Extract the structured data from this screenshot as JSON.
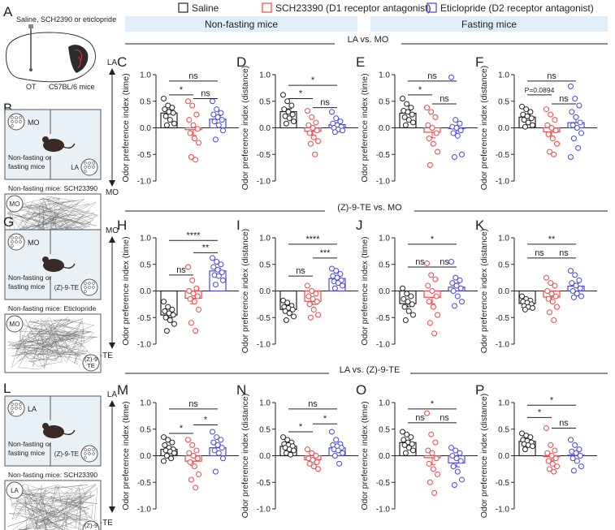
{
  "legend": [
    {
      "label": "Saline",
      "color": "#222222"
    },
    {
      "label": "SCH23390 (D1 receptor antagonist)",
      "color": "#e8474b"
    },
    {
      "label": "Eticlopride (D2 receptor antagonist)",
      "color": "#4a47d6"
    }
  ],
  "headers": {
    "nonfasting": "Non-fasting mice",
    "fasting": "Fasting mice"
  },
  "colors": {
    "saline": "#222222",
    "sch": "#e8474b",
    "etic": "#4a47d6",
    "header_bg": "#dfeef8",
    "box_bg": "#e9f1f7"
  },
  "rows": [
    {
      "title": "LA vs. MO",
      "top": "LA",
      "bottom": "MO"
    },
    {
      "title": "(Z)-9-TE vs. MO",
      "top": "MO",
      "bottom": "(Z)-9-TE"
    },
    {
      "title": "LA vs. (Z)-9-TE",
      "top": "LA",
      "bottom": "(Z)-9-TE"
    }
  ],
  "panel_A": {
    "letter": "A",
    "caption": "Saline, SCH2390 or eticlopride",
    "mouse": "C57BL/6 mice",
    "site": "OT"
  },
  "schematics": [
    {
      "letter": "B",
      "odor1": "MO",
      "odor2": "LA",
      "label": "Non-fasting or fasting mice",
      "track_caption": "Non-fasting mice: SCH23390",
      "track1": "MO",
      "track2": "LA"
    },
    {
      "letter": "G",
      "odor1": "MO",
      "odor2": "(Z)-9-TE",
      "label": "Non-fasting or fasting mice",
      "track_caption": "Non-fasting mice: Eticlopride",
      "track1": "MO",
      "track2": "(Z)-9 TE"
    },
    {
      "letter": "L",
      "odor1": "LA",
      "odor2": "(Z)-9-TE",
      "label": "Non-fasting or fasting mice",
      "track_caption": "Non-fasting mice: SCH23390",
      "track1": "LA",
      "track2": "(Z)-9 TE"
    }
  ],
  "chart_data": [
    {
      "panel": "C",
      "type": "scatter",
      "ylabel": "Odor preference index (time)",
      "ylim": [
        -1,
        1
      ],
      "yticks": [
        -1.0,
        -0.5,
        0.0,
        0.5,
        1.0
      ],
      "series": [
        {
          "values": [
            0.55,
            0.42,
            0.38,
            0.35,
            0.3,
            0.28,
            0.22,
            0.15,
            0.08,
            0.05
          ]
        },
        {
          "values": [
            0.5,
            0.42,
            0.25,
            0.15,
            0.05,
            -0.02,
            -0.1,
            -0.2,
            -0.28,
            -0.55,
            -0.6
          ]
        },
        {
          "values": [
            0.5,
            0.35,
            0.28,
            0.25,
            0.2,
            0.15,
            0.12,
            0.05,
            -0.05,
            -0.22
          ]
        }
      ],
      "brackets": [
        {
          "from": 0,
          "to": 2,
          "label": "ns",
          "y": 0.88
        },
        {
          "from": 0,
          "to": 1,
          "label": "*",
          "y": 0.62
        },
        {
          "from": 1,
          "to": 2,
          "label": "ns",
          "y": 0.55
        }
      ]
    },
    {
      "panel": "D",
      "type": "scatter",
      "ylabel": "Odor preference index (distance)",
      "ylim": [
        -1,
        1
      ],
      "yticks": [
        -1.0,
        -0.5,
        0.0,
        0.5,
        1.0
      ],
      "series": [
        {
          "values": [
            0.62,
            0.5,
            0.42,
            0.35,
            0.3,
            0.25,
            0.22,
            0.18,
            0.12,
            0.08
          ]
        },
        {
          "values": [
            0.32,
            0.2,
            0.1,
            0.05,
            0.0,
            -0.05,
            -0.1,
            -0.18,
            -0.25,
            -0.3,
            -0.5
          ]
        },
        {
          "values": [
            0.3,
            0.18,
            0.12,
            0.08,
            0.05,
            0.02,
            0.0,
            -0.03,
            -0.05,
            -0.08
          ]
        }
      ],
      "brackets": [
        {
          "from": 0,
          "to": 2,
          "label": "*",
          "y": 0.8
        },
        {
          "from": 0,
          "to": 1,
          "label": "*",
          "y": 0.55
        },
        {
          "from": 1,
          "to": 2,
          "label": "ns",
          "y": 0.38
        }
      ]
    },
    {
      "panel": "E",
      "type": "scatter",
      "ylabel": "Odor preference index (time)",
      "ylim": [
        -1,
        1
      ],
      "yticks": [
        -1.0,
        -0.5,
        0.0,
        0.5,
        1.0
      ],
      "series": [
        {
          "values": [
            0.55,
            0.45,
            0.38,
            0.32,
            0.3,
            0.25,
            0.2,
            0.15,
            0.1,
            0.05
          ]
        },
        {
          "values": [
            0.38,
            0.3,
            0.2,
            0.05,
            0.0,
            -0.1,
            -0.2,
            -0.3,
            -0.45,
            -0.7
          ]
        },
        {
          "values": [
            0.95,
            0.15,
            0.08,
            0.02,
            0.0,
            -0.05,
            -0.1,
            -0.15,
            -0.5,
            -0.55
          ]
        }
      ],
      "brackets": [
        {
          "from": 0,
          "to": 2,
          "label": "ns",
          "y": 0.88
        },
        {
          "from": 0,
          "to": 1,
          "label": "*",
          "y": 0.62
        },
        {
          "from": 1,
          "to": 2,
          "label": "ns",
          "y": 0.45
        }
      ]
    },
    {
      "panel": "F",
      "type": "scatter",
      "ylabel": "Odor preference index (distance)",
      "ylim": [
        -1,
        1
      ],
      "yticks": [
        -1.0,
        -0.5,
        0.0,
        0.5,
        1.0
      ],
      "series": [
        {
          "values": [
            0.4,
            0.35,
            0.3,
            0.25,
            0.22,
            0.18,
            0.15,
            0.1,
            0.05,
            0.02
          ]
        },
        {
          "values": [
            0.35,
            0.25,
            0.15,
            0.05,
            0.0,
            -0.05,
            -0.12,
            -0.2,
            -0.3,
            -0.45,
            -0.5
          ]
        },
        {
          "values": [
            0.78,
            0.55,
            0.42,
            0.3,
            0.2,
            0.1,
            0.05,
            0.0,
            -0.1,
            -0.2,
            -0.38,
            -0.55
          ]
        }
      ],
      "brackets": [
        {
          "from": 0,
          "to": 2,
          "label": "ns",
          "y": 0.88
        },
        {
          "from": 0,
          "to": 1,
          "label": "P=0.0894",
          "y": 0.62
        },
        {
          "from": 1,
          "to": 2,
          "label": "ns",
          "y": 0.45
        }
      ]
    },
    {
      "panel": "H",
      "type": "scatter",
      "ylabel": "Odor preference index (time)",
      "ylim": [
        -1,
        1
      ],
      "yticks": [
        -1.0,
        -0.5,
        0.0,
        0.5,
        1.0
      ],
      "series": [
        {
          "values": [
            -0.2,
            -0.3,
            -0.35,
            -0.38,
            -0.42,
            -0.45,
            -0.5,
            -0.55,
            -0.62,
            -0.75
          ]
        },
        {
          "values": [
            0.45,
            0.2,
            0.05,
            0.0,
            -0.05,
            -0.1,
            -0.15,
            -0.2,
            -0.35,
            -0.6,
            -0.75
          ]
        },
        {
          "values": [
            0.62,
            0.55,
            0.5,
            0.45,
            0.4,
            0.35,
            0.3,
            0.28,
            0.2,
            0.12
          ]
        }
      ],
      "brackets": [
        {
          "from": 0,
          "to": 2,
          "label": "****",
          "y": 0.95
        },
        {
          "from": 1,
          "to": 2,
          "label": "**",
          "y": 0.72
        },
        {
          "from": 0,
          "to": 1,
          "label": "ns",
          "y": 0.3
        }
      ]
    },
    {
      "panel": "I",
      "type": "scatter",
      "ylabel": "Odor preference index (distance)",
      "ylim": [
        -1,
        1
      ],
      "yticks": [
        -1.0,
        -0.5,
        0.0,
        0.5,
        1.0
      ],
      "series": [
        {
          "values": [
            -0.18,
            -0.22,
            -0.28,
            -0.3,
            -0.32,
            -0.35,
            -0.38,
            -0.42,
            -0.48,
            -0.55
          ]
        },
        {
          "values": [
            0.1,
            0.0,
            -0.05,
            -0.1,
            -0.15,
            -0.2,
            -0.25,
            -0.35,
            -0.45,
            -0.5
          ]
        },
        {
          "values": [
            0.42,
            0.38,
            0.32,
            0.28,
            0.25,
            0.2,
            0.18,
            0.15,
            0.1,
            0.05
          ]
        }
      ],
      "brackets": [
        {
          "from": 0,
          "to": 2,
          "label": "****",
          "y": 0.88
        },
        {
          "from": 1,
          "to": 2,
          "label": "***",
          "y": 0.62
        },
        {
          "from": 0,
          "to": 1,
          "label": "ns",
          "y": 0.28
        }
      ]
    },
    {
      "panel": "J",
      "type": "scatter",
      "ylabel": "Odor preference index (time)",
      "ylim": [
        -1,
        1
      ],
      "yticks": [
        -1.0,
        -0.5,
        0.0,
        0.5,
        1.0
      ],
      "series": [
        {
          "values": [
            0.05,
            -0.05,
            -0.1,
            -0.15,
            -0.2,
            -0.25,
            -0.3,
            -0.38,
            -0.45,
            -0.55
          ]
        },
        {
          "values": [
            0.52,
            0.3,
            0.22,
            0.1,
            0.0,
            -0.1,
            -0.2,
            -0.3,
            -0.45,
            -0.6,
            -0.8
          ]
        },
        {
          "values": [
            0.55,
            0.25,
            0.2,
            0.15,
            0.1,
            0.05,
            0.0,
            -0.1,
            -0.2,
            -0.28
          ]
        }
      ],
      "brackets": [
        {
          "from": 0,
          "to": 2,
          "label": "*",
          "y": 0.88
        },
        {
          "from": 0,
          "to": 1,
          "label": "ns",
          "y": 0.45
        },
        {
          "from": 1,
          "to": 2,
          "label": "ns",
          "y": 0.45
        }
      ]
    },
    {
      "panel": "K",
      "type": "scatter",
      "ylabel": "Odor preference index (distance)",
      "ylim": [
        -1,
        1
      ],
      "yticks": [
        -1.0,
        -0.5,
        0.0,
        0.5,
        1.0
      ],
      "series": [
        {
          "values": [
            -0.1,
            -0.15,
            -0.18,
            -0.2,
            -0.22,
            -0.25,
            -0.28,
            -0.3,
            -0.32,
            -0.35
          ]
        },
        {
          "values": [
            0.25,
            0.15,
            0.1,
            0.0,
            -0.05,
            -0.1,
            -0.15,
            -0.2,
            -0.3,
            -0.4,
            -0.55
          ]
        },
        {
          "values": [
            0.38,
            0.3,
            0.2,
            0.15,
            0.1,
            0.05,
            0.0,
            -0.05,
            -0.1,
            -0.12
          ]
        }
      ],
      "brackets": [
        {
          "from": 0,
          "to": 2,
          "label": "**",
          "y": 0.88
        },
        {
          "from": 0,
          "to": 1,
          "label": "ns",
          "y": 0.62
        },
        {
          "from": 1,
          "to": 2,
          "label": "ns",
          "y": 0.62
        }
      ]
    },
    {
      "panel": "M",
      "type": "scatter",
      "ylabel": "Odor preference index (time)",
      "ylim": [
        -1,
        1
      ],
      "yticks": [
        -1.0,
        -0.5,
        0.0,
        0.5,
        1.0
      ],
      "series": [
        {
          "values": [
            0.35,
            0.3,
            0.25,
            0.2,
            0.15,
            0.12,
            0.1,
            0.08,
            0.05,
            0.0,
            -0.05,
            -0.1
          ]
        },
        {
          "values": [
            0.3,
            0.2,
            0.1,
            0.05,
            0.0,
            -0.05,
            -0.12,
            -0.2,
            -0.35,
            -0.45,
            -0.6
          ]
        },
        {
          "values": [
            0.45,
            0.35,
            0.3,
            0.25,
            0.2,
            0.15,
            0.1,
            0.05,
            -0.05,
            -0.3
          ]
        }
      ],
      "brackets": [
        {
          "from": 0,
          "to": 2,
          "label": "ns",
          "y": 0.88
        },
        {
          "from": 1,
          "to": 2,
          "label": "*",
          "y": 0.58
        },
        {
          "from": 0,
          "to": 1,
          "label": "*",
          "y": 0.42
        }
      ]
    },
    {
      "panel": "N",
      "type": "scatter",
      "ylabel": "Odor preference index (distance)",
      "ylim": [
        -1,
        1
      ],
      "yticks": [
        -1.0,
        -0.5,
        0.0,
        0.5,
        1.0
      ],
      "series": [
        {
          "values": [
            0.35,
            0.3,
            0.25,
            0.22,
            0.2,
            0.18,
            0.15,
            0.12,
            0.1,
            0.05,
            0.02
          ]
        },
        {
          "values": [
            0.12,
            0.05,
            0.0,
            -0.05,
            -0.08,
            -0.12,
            -0.15,
            -0.2,
            -0.25
          ]
        },
        {
          "values": [
            0.45,
            0.3,
            0.22,
            0.2,
            0.18,
            0.15,
            0.12,
            0.1,
            0.05,
            0.0,
            -0.15
          ]
        }
      ],
      "brackets": [
        {
          "from": 0,
          "to": 2,
          "label": "ns",
          "y": 0.88
        },
        {
          "from": 1,
          "to": 2,
          "label": "*",
          "y": 0.6
        },
        {
          "from": 0,
          "to": 1,
          "label": "*",
          "y": 0.45
        }
      ]
    },
    {
      "panel": "O",
      "type": "scatter",
      "ylabel": "Odor preference index (time)",
      "ylim": [
        -1,
        1
      ],
      "yticks": [
        -1.0,
        -0.5,
        0.0,
        0.5,
        1.0
      ],
      "series": [
        {
          "values": [
            0.45,
            0.4,
            0.35,
            0.3,
            0.25,
            0.22,
            0.2,
            0.15,
            0.1,
            0.05
          ]
        },
        {
          "values": [
            0.8,
            0.4,
            0.25,
            0.1,
            0.05,
            -0.05,
            -0.15,
            -0.25,
            -0.35,
            -0.5,
            -0.7
          ]
        },
        {
          "values": [
            0.15,
            0.1,
            0.05,
            0.0,
            -0.05,
            -0.1,
            -0.2,
            -0.3,
            -0.45,
            -0.55
          ]
        }
      ],
      "brackets": [
        {
          "from": 0,
          "to": 2,
          "label": "*",
          "y": 0.88
        },
        {
          "from": 0,
          "to": 1,
          "label": "ns",
          "y": 0.62
        },
        {
          "from": 1,
          "to": 2,
          "label": "ns",
          "y": 0.62
        }
      ]
    },
    {
      "panel": "P",
      "type": "scatter",
      "ylabel": "Odor preference index (distance)",
      "ylim": [
        -1,
        1
      ],
      "yticks": [
        -1.0,
        -0.5,
        0.0,
        0.5,
        1.0
      ],
      "series": [
        {
          "values": [
            0.42,
            0.38,
            0.35,
            0.3,
            0.28,
            0.25,
            0.22,
            0.2,
            0.18,
            0.12
          ]
        },
        {
          "values": [
            0.52,
            0.2,
            0.1,
            0.05,
            0.0,
            -0.05,
            -0.1,
            -0.15,
            -0.2,
            -0.25,
            -0.3
          ]
        },
        {
          "values": [
            0.3,
            0.2,
            0.12,
            0.08,
            0.05,
            0.0,
            -0.05,
            -0.1,
            -0.2,
            -0.28
          ]
        }
      ],
      "brackets": [
        {
          "from": 0,
          "to": 2,
          "label": "*",
          "y": 0.95
        },
        {
          "from": 0,
          "to": 1,
          "label": "*",
          "y": 0.72
        },
        {
          "from": 1,
          "to": 2,
          "label": "ns",
          "y": 0.52
        }
      ]
    }
  ]
}
